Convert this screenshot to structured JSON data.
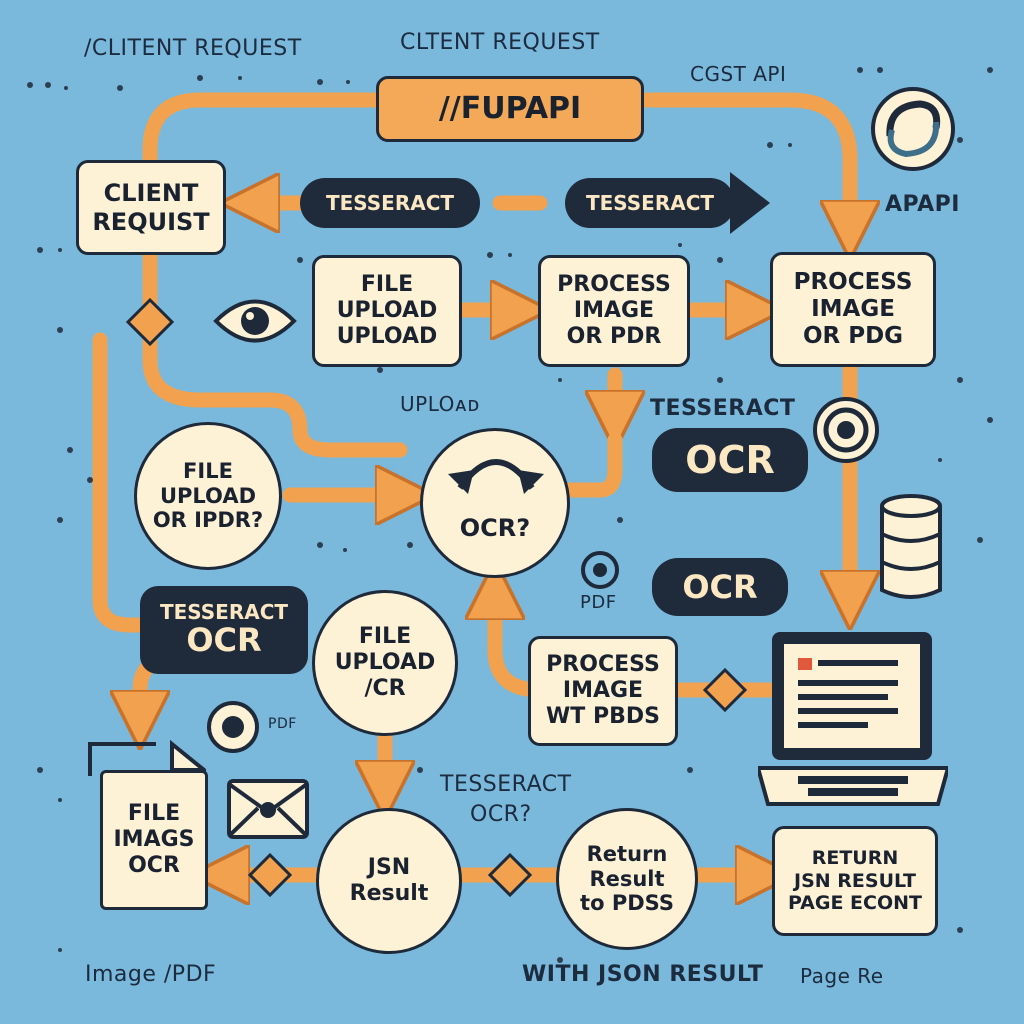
{
  "labels": {
    "client_request_left": "/CLITENT REQUEST",
    "client_request_top": "CLTENT REQUEST",
    "cost_api": "CGST API",
    "apapi": "APAPI",
    "upload_note": "UPLOᴀᴅ",
    "tesseract_mid": "TESSERACT",
    "pdf_note": "PDF",
    "pdf_small": "PDF",
    "tesseract_ocr_q_1": "TESSERACT",
    "tesseract_ocr_q_2": "OCR?",
    "image_pdf_footer": "Image /PDF",
    "json_result_footer": "WITH JSON RESULT",
    "page_footer": "Page Re"
  },
  "nodes": {
    "fupapi": "//FUPAPI",
    "client_request": "CLIENT\nREQUIST",
    "file_upload_upload": "FILE\nUPLOAD\nUPLOAD",
    "process_image_pdr": "PROCESS\nIMAGE\nOR PDR",
    "process_image_pdg": "PROCESS\nIMAGE\nOR PDG",
    "file_upload_ipdr": "FILE\nUPLOAD\nOR IPDR?",
    "ocr_center": "OCR?",
    "file_upload_ocr": "FILE\nUPLOAD\n/CR",
    "process_image_pbds": "PROCESS\nIMAGE\nWT PBDS",
    "file_image_ocr": "FILE\nIMAGS\nOCR",
    "json_result": "JSN\nResult",
    "return_result_pdss": "Return\nResult\nto PDSS",
    "return_json_result": "RETURN\nJSN RESULT\nPAGE ECONT"
  },
  "pills": {
    "tesseract_left": "TESSERACT",
    "tesseract_right": "TESSERACT",
    "ocr_big": "OCR",
    "ocr_mid": "OCR",
    "tesseract_stack_1": "TESSERACT",
    "tesseract_stack_2": "OCR"
  },
  "icons": [
    "eye-icon",
    "refresh-arrows-icon",
    "target-icon",
    "swirl-logo-icon",
    "database-icon",
    "laptop-icon",
    "document-icon",
    "envelope-icon",
    "file-stack-icon",
    "pdf-icon"
  ],
  "colors": {
    "background": "#7ab8dc",
    "arrow": "#f2a24e",
    "arrow_stroke": "#c8722b",
    "node_fill": "#fdf1d6",
    "node_stroke": "#1e2a3a",
    "pill_fill": "#1f2a3b",
    "pill_text": "#fbe7c2",
    "fupapi_fill": "#f4a958"
  }
}
